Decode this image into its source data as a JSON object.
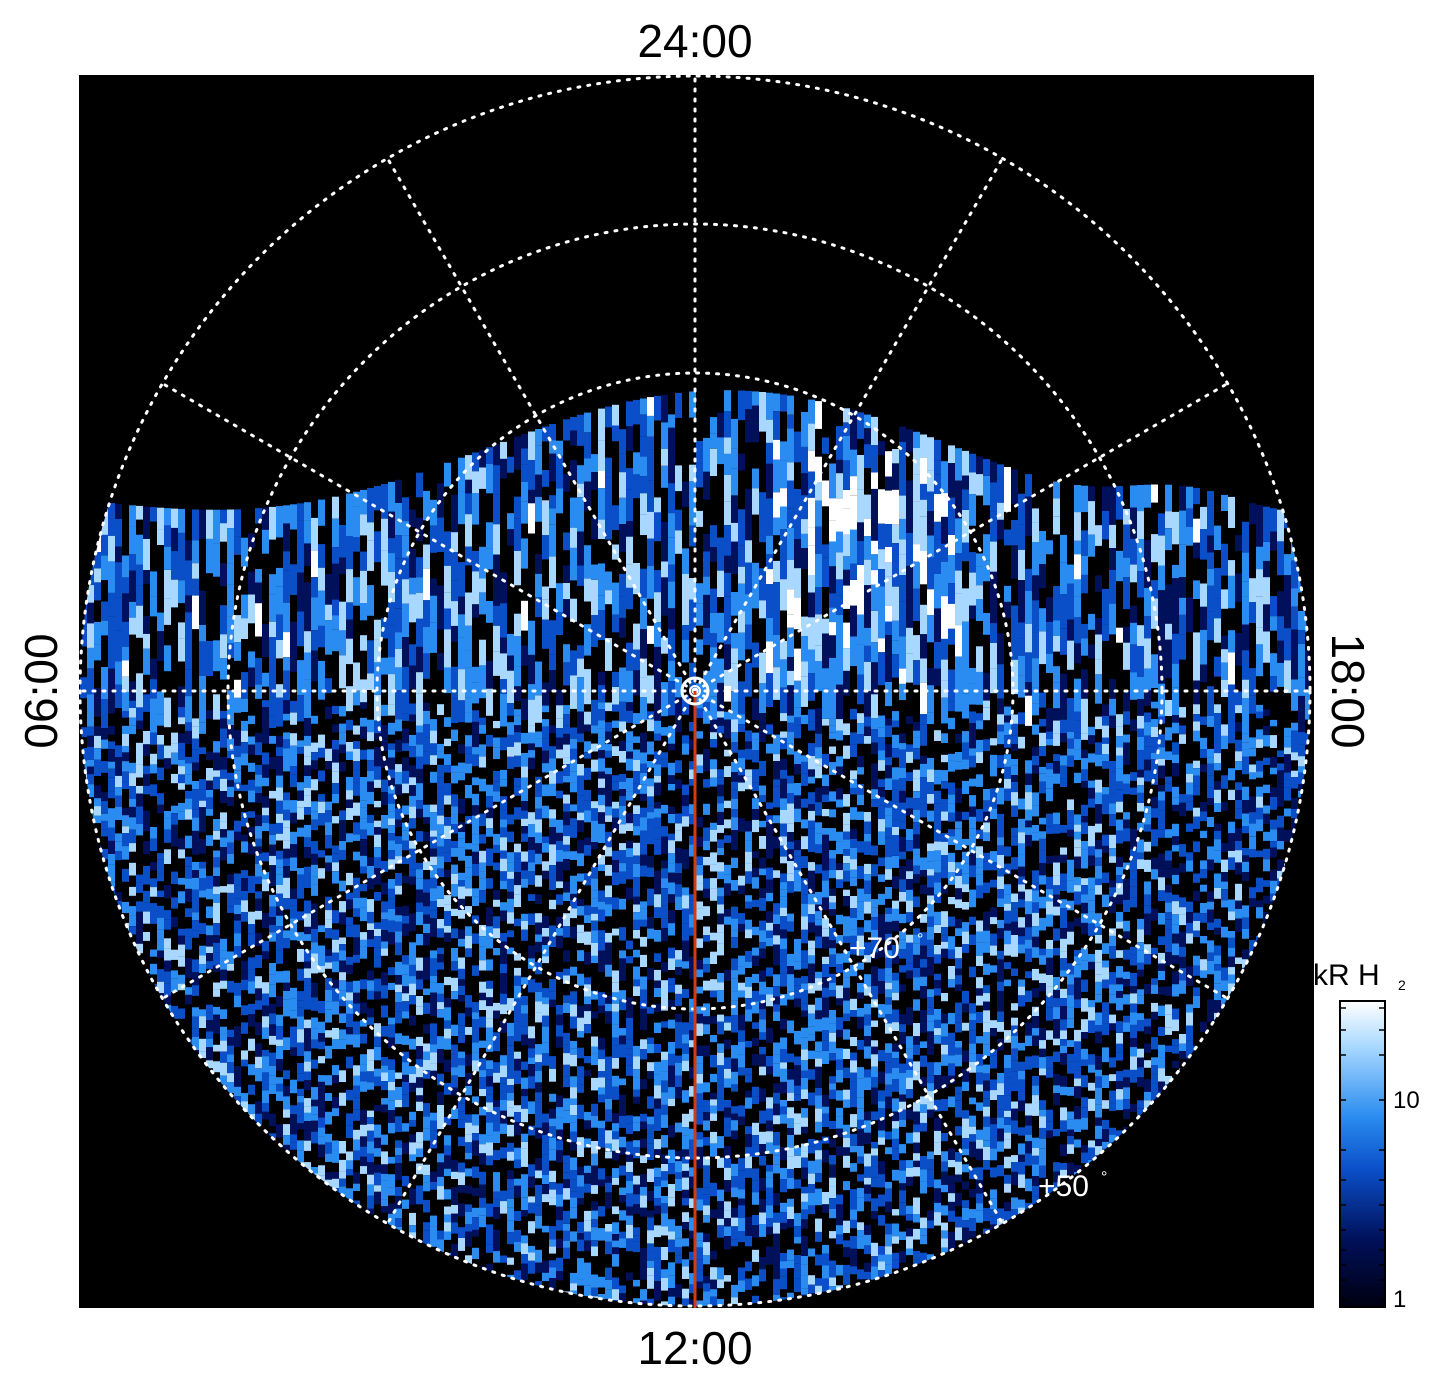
{
  "labels": {
    "top": "24:00",
    "bottom": "12:00",
    "left": "06:00",
    "right": "18:00"
  },
  "latitude_labels": {
    "inner": "+70",
    "outer": "+50",
    "degree_symbol": "°"
  },
  "colorbar": {
    "title": "kR H",
    "subscript": "2",
    "ticks": [
      "10",
      "1"
    ],
    "colors": [
      "#000010",
      "#00105a",
      "#0a4fc8",
      "#2a8cf0",
      "#a8d8ff",
      "#ffffff"
    ]
  },
  "colors": {
    "background": "#000000",
    "grid": "#ffffff",
    "meridian_line": "#d23c12"
  }
}
